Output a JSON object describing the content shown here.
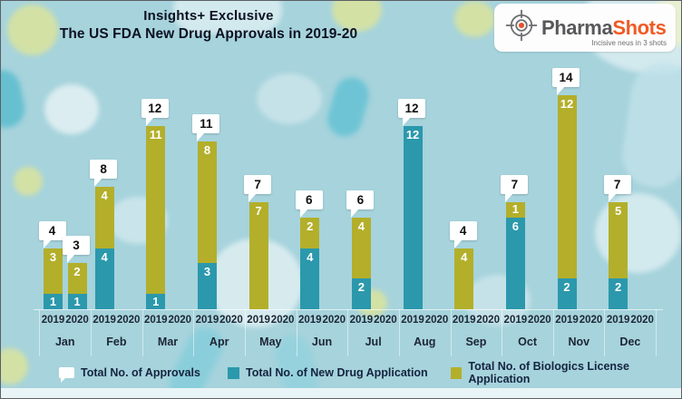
{
  "title": {
    "line1": "Insights+ Exclusive",
    "line2": "The US FDA New Drug Approvals in 2019-20"
  },
  "logo": {
    "brand_part1": "Pharma",
    "brand_part2": "Shots",
    "tagline": "Incisive neus in 3 shots"
  },
  "legend": {
    "approvals": "Total No. of Approvals",
    "nda": "Total No. of New Drug Application",
    "bla": "Total No. of Biologics License Application"
  },
  "colors": {
    "background": "#a6d3dc",
    "nda": "#2b98ac",
    "bla": "#b3af2b",
    "callout_bg": "#ffffff",
    "text_dark": "#1d2535",
    "logo_orange": "#f15a24",
    "logo_gray": "#58585a"
  },
  "chart_data": {
    "type": "bar",
    "stacked": true,
    "title": "The US FDA New Drug Approvals in 2019-20",
    "legend_position": "bottom",
    "ylim": [
      0,
      14
    ],
    "years": [
      "2019",
      "2020"
    ],
    "series_names": {
      "total": "Total No. of Approvals",
      "nda": "Total No. of New Drug Application",
      "bla": "Total No. of Biologics License Application"
    },
    "months": [
      {
        "label": "Jan",
        "y2019": {
          "nda": 1,
          "bla": 3,
          "total": 4
        },
        "y2020": {
          "nda": 1,
          "bla": 2,
          "total": 3
        }
      },
      {
        "label": "Feb",
        "y2019": {
          "nda": 4,
          "bla": 4,
          "total": 8
        },
        "y2020": null
      },
      {
        "label": "Mar",
        "y2019": {
          "nda": 1,
          "bla": 11,
          "total": 12
        },
        "y2020": null
      },
      {
        "label": "Apr",
        "y2019": {
          "nda": 3,
          "bla": 8,
          "total": 11
        },
        "y2020": null
      },
      {
        "label": "May",
        "y2019": {
          "nda": 0,
          "bla": 7,
          "total": 7
        },
        "y2020": null
      },
      {
        "label": "Jun",
        "y2019": {
          "nda": 4,
          "bla": 2,
          "total": 6
        },
        "y2020": null
      },
      {
        "label": "Jul",
        "y2019": {
          "nda": 2,
          "bla": 4,
          "total": 6
        },
        "y2020": null
      },
      {
        "label": "Aug",
        "y2019": {
          "nda": 12,
          "bla": 0,
          "total": 12
        },
        "y2020": null
      },
      {
        "label": "Sep",
        "y2019": {
          "nda": 0,
          "bla": 4,
          "total": 4
        },
        "y2020": null
      },
      {
        "label": "Oct",
        "y2019": {
          "nda": 6,
          "bla": 1,
          "total": 7
        },
        "y2020": null
      },
      {
        "label": "Nov",
        "y2019": {
          "nda": 2,
          "bla": 12,
          "total": 14
        },
        "y2020": null
      },
      {
        "label": "Dec",
        "y2019": {
          "nda": 2,
          "bla": 5,
          "total": 7
        },
        "y2020": null
      }
    ]
  }
}
